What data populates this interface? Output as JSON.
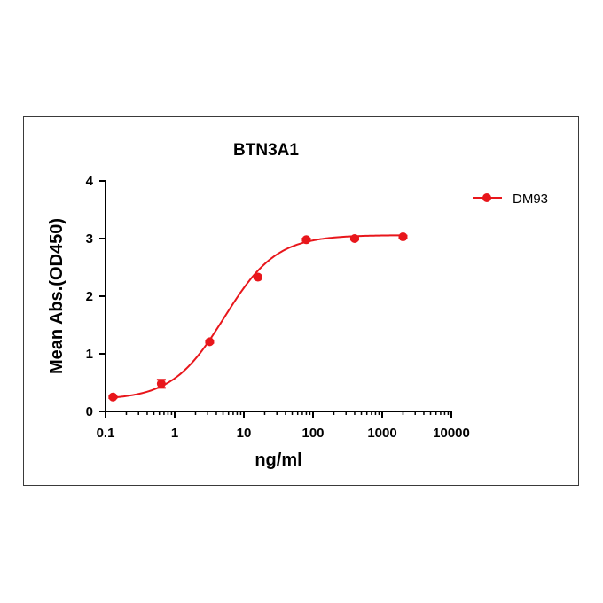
{
  "chart_data": {
    "type": "scatter",
    "title": "BTN3A1",
    "xlabel": "ng/ml",
    "ylabel": "Mean Abs.(OD450)",
    "xscale": "log",
    "xlim": [
      0.1,
      10000
    ],
    "ylim": [
      0,
      4
    ],
    "xticks": [
      0.1,
      1,
      10,
      100,
      1000,
      10000
    ],
    "xtick_labels": [
      "0.1",
      "1",
      "10",
      "100",
      "1000",
      "10000"
    ],
    "yticks": [
      0,
      1,
      2,
      3,
      4
    ],
    "ytick_labels": [
      "0",
      "1",
      "2",
      "3",
      "4"
    ],
    "grid": false,
    "legend_position": "top-right",
    "series": [
      {
        "name": "DM93",
        "color": "#e8161b",
        "marker": "circle",
        "fit": "sigmoidal (4PL)",
        "x": [
          0.128,
          0.64,
          3.2,
          16,
          80,
          400,
          2000
        ],
        "y": [
          0.25,
          0.48,
          1.21,
          2.33,
          2.98,
          3.0,
          3.03
        ],
        "y_error": [
          0.02,
          0.07,
          0.02,
          0.03,
          0.02,
          0.02,
          0.02
        ]
      }
    ]
  }
}
